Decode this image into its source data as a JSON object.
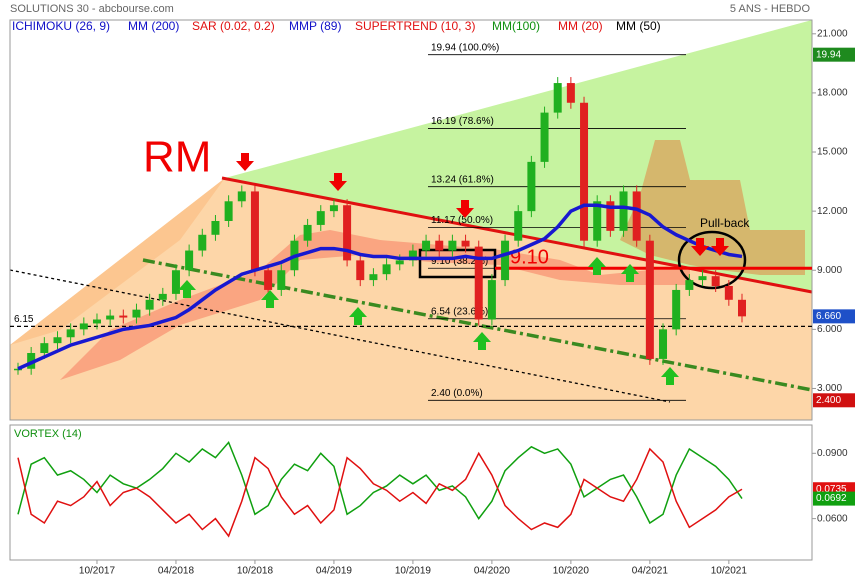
{
  "chart_data": [
    {
      "type": "candlestick",
      "title": "SOLUTIONS 30 - abcbourse.com",
      "subtitle": "5 ANS - HEBDO",
      "legend": [
        {
          "name": "ICHIMOKU (26, 9)",
          "color": "#1010c8"
        },
        {
          "name": "MM (200)",
          "color": "#1010c8"
        },
        {
          "name": "SAR (0.02, 0.2)",
          "color": "#e01010"
        },
        {
          "name": "MMP (89)",
          "color": "#1010c8"
        },
        {
          "name": "SUPERTREND (10, 3)",
          "color": "#e01010"
        },
        {
          "name": "MM(100)",
          "color": "#109010"
        },
        {
          "name": "MM (20)",
          "color": "#e01010"
        },
        {
          "name": "MM (50)",
          "color": "#000000"
        }
      ],
      "categories": [
        null,
        null,
        null,
        null,
        null,
        null,
        "10/2017",
        null,
        null,
        null,
        null,
        null,
        "04/2018",
        null,
        null,
        null,
        null,
        null,
        "10/2018",
        null,
        null,
        null,
        null,
        null,
        "04/2019",
        null,
        null,
        null,
        null,
        null,
        "10/2019",
        null,
        null,
        null,
        null,
        null,
        "04/2020",
        null,
        null,
        null,
        null,
        null,
        "10/2020",
        null,
        null,
        null,
        null,
        null,
        "04/2021",
        null,
        null,
        null,
        null,
        null,
        "10/2021",
        null
      ],
      "values": [
        4.0,
        4.8,
        5.3,
        5.6,
        6.0,
        6.3,
        6.5,
        6.7,
        6.6,
        7.0,
        7.5,
        7.8,
        9.0,
        10.0,
        10.8,
        11.5,
        12.5,
        13.0,
        9.0,
        8.0,
        9.0,
        10.5,
        11.3,
        12.0,
        12.3,
        9.5,
        8.5,
        8.8,
        9.3,
        9.5,
        10.0,
        10.5,
        10.0,
        10.5,
        10.2,
        6.5,
        8.5,
        10.5,
        12.0,
        14.5,
        17.0,
        18.5,
        17.5,
        10.5,
        12.5,
        11.0,
        13.0,
        10.5,
        4.5,
        6.0,
        8.0,
        8.5,
        8.7,
        8.2,
        7.5,
        6.66
      ],
      "value_labels": [
        null,
        null,
        null,
        null,
        null,
        null,
        null,
        null,
        null,
        null,
        null,
        null,
        null,
        null,
        null,
        null,
        null,
        null,
        null,
        null,
        null,
        null,
        null,
        null,
        null,
        null,
        null,
        null,
        null,
        null,
        null,
        null,
        null,
        null,
        null,
        null,
        null,
        null,
        null,
        null,
        null,
        null,
        null,
        null,
        null,
        null,
        null,
        null,
        null,
        null,
        null,
        null,
        null,
        null,
        null,
        "6.660"
      ],
      "color_up": "#20b020",
      "color_down": "#e02020",
      "badge_color": "#1e50c8",
      "ma200": {
        "color": "#1818d0",
        "values": [
          4.0,
          4.3,
          4.6,
          4.9,
          5.2,
          5.4,
          5.6,
          5.8,
          6.0,
          6.1,
          6.2,
          6.4,
          6.6,
          7.0,
          7.5,
          8.0,
          8.4,
          8.8,
          9.0,
          9.2,
          9.4,
          9.7,
          9.9,
          10.1,
          10.1,
          10.0,
          9.8,
          9.7,
          9.7,
          9.6,
          9.6,
          9.6,
          9.6,
          9.6,
          9.7,
          9.6,
          9.6,
          9.8,
          10.0,
          10.3,
          10.6,
          11.2,
          12.0,
          12.3,
          12.3,
          12.2,
          12.2,
          12.1,
          11.8,
          11.2,
          10.8,
          10.5,
          10.2,
          10.0,
          9.8,
          9.7
        ]
      },
      "high_badge": 19.94,
      "low_badge": {
        "value": 2.4,
        "label": "2.400"
      },
      "fib_levels": [
        {
          "value": 19.94,
          "label": "19.94  (100.0%)"
        },
        {
          "value": 16.19,
          "label": "16.19  (78.6%)"
        },
        {
          "value": 13.24,
          "label": "13.24  (61.8%)"
        },
        {
          "value": 11.17,
          "label": "11.17  (50.0%)"
        },
        {
          "value": 9.1,
          "label": "9.10  (38.2%)"
        },
        {
          "value": 6.54,
          "label": "6.54  (23.6%)"
        },
        {
          "value": 2.4,
          "label": "2.40  (0.0%)"
        }
      ],
      "support": {
        "value": 9.1,
        "label": "9.10"
      },
      "dashed_level": 6.15,
      "annotations": [
        "RM",
        "Pull-back"
      ],
      "ylim": [
        1.4,
        21.7
      ],
      "yticks": [
        {
          "value": 3,
          "label": "3.000"
        },
        {
          "value": 6,
          "label": "6.000"
        },
        {
          "value": 9,
          "label": "9.000"
        },
        {
          "value": 12,
          "label": "12.000"
        },
        {
          "value": 15,
          "label": "15.000"
        },
        {
          "value": 18,
          "label": "18.000"
        },
        {
          "value": 21,
          "label": "21.000"
        }
      ]
    },
    {
      "type": "line",
      "title": "VORTEX (14)",
      "series": [
        {
          "color": "#10a010",
          "values": [
            0.062,
            0.085,
            0.088,
            0.08,
            0.082,
            0.078,
            0.072,
            0.08,
            0.076,
            0.074,
            0.078,
            0.083,
            0.09,
            0.086,
            0.092,
            0.088,
            0.095,
            0.08,
            0.062,
            0.066,
            0.078,
            0.085,
            0.082,
            0.09,
            0.084,
            0.062,
            0.066,
            0.072,
            0.075,
            0.08,
            0.076,
            0.08,
            0.073,
            0.075,
            0.07,
            0.06,
            0.068,
            0.082,
            0.088,
            0.093,
            0.09,
            0.092,
            0.085,
            0.07,
            0.074,
            0.078,
            0.08,
            0.07,
            0.058,
            0.062,
            0.08,
            0.092,
            0.088,
            0.084,
            0.078,
            0.0692
          ],
          "value_labels": [
            null,
            null,
            null,
            null,
            null,
            null,
            null,
            null,
            null,
            null,
            null,
            null,
            null,
            null,
            null,
            null,
            null,
            null,
            null,
            null,
            null,
            null,
            null,
            null,
            null,
            null,
            null,
            null,
            null,
            null,
            null,
            null,
            null,
            null,
            null,
            null,
            null,
            null,
            null,
            null,
            null,
            null,
            null,
            null,
            null,
            null,
            null,
            null,
            null,
            null,
            null,
            null,
            null,
            null,
            null,
            "0.0692"
          ]
        },
        {
          "color": "#e01010",
          "values": [
            0.088,
            0.062,
            0.058,
            0.068,
            0.066,
            0.07,
            0.077,
            0.066,
            0.072,
            0.074,
            0.07,
            0.064,
            0.058,
            0.062,
            0.055,
            0.06,
            0.052,
            0.068,
            0.088,
            0.083,
            0.07,
            0.062,
            0.066,
            0.058,
            0.064,
            0.088,
            0.083,
            0.076,
            0.073,
            0.068,
            0.072,
            0.067,
            0.076,
            0.073,
            0.078,
            0.09,
            0.08,
            0.066,
            0.06,
            0.055,
            0.058,
            0.056,
            0.062,
            0.078,
            0.074,
            0.07,
            0.068,
            0.078,
            0.092,
            0.086,
            0.068,
            0.056,
            0.06,
            0.064,
            0.07,
            0.0735
          ],
          "value_labels": [
            null,
            null,
            null,
            null,
            null,
            null,
            null,
            null,
            null,
            null,
            null,
            null,
            null,
            null,
            null,
            null,
            null,
            null,
            null,
            null,
            null,
            null,
            null,
            null,
            null,
            null,
            null,
            null,
            null,
            null,
            null,
            null,
            null,
            null,
            null,
            null,
            null,
            null,
            null,
            null,
            null,
            null,
            null,
            null,
            null,
            null,
            null,
            null,
            null,
            null,
            null,
            null,
            null,
            null,
            null,
            "0.0735"
          ]
        }
      ],
      "ylim": [
        0.041,
        0.103
      ],
      "yticks": [
        {
          "value": 0.09,
          "label": "0.0900"
        },
        {
          "value": 0.06,
          "label": "0.0600"
        }
      ]
    }
  ]
}
